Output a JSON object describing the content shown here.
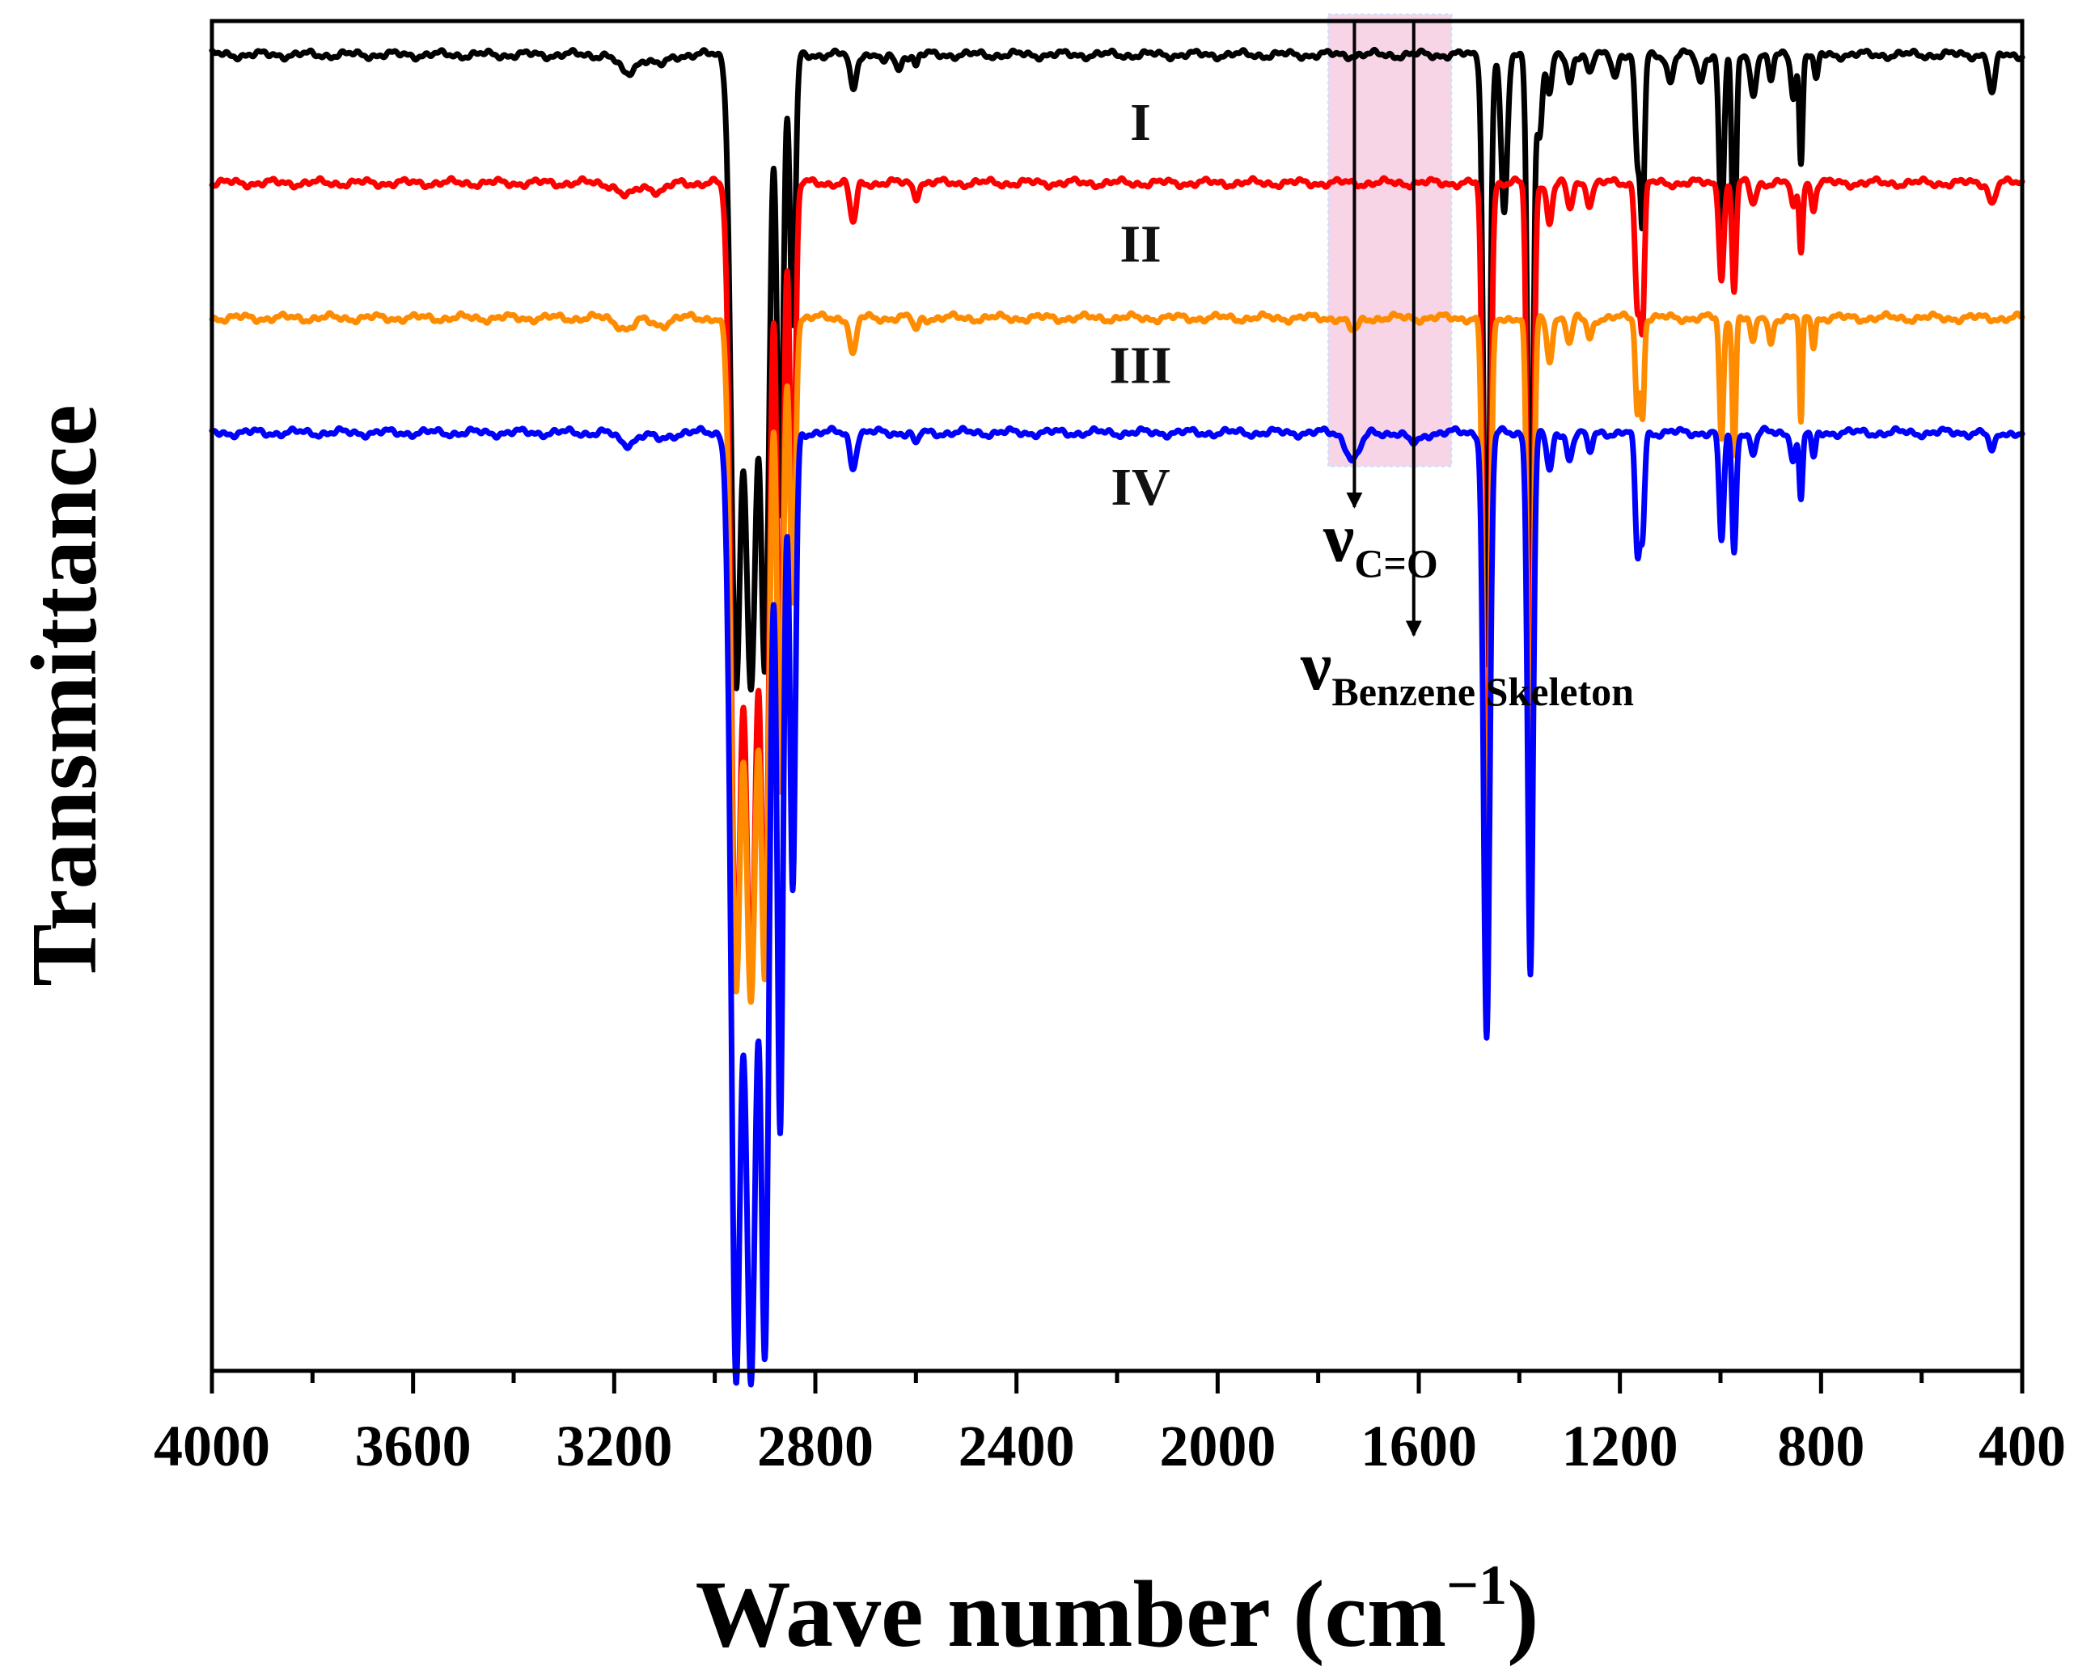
{
  "chart_data": {
    "type": "line",
    "title": "",
    "xlabel": "Wave number (cm",
    "xlabel_sup": "−1",
    "xlabel_close": ")",
    "ylabel": "Transmittance",
    "xlim": [
      4000,
      400
    ],
    "x_reversed": true,
    "xticks": [
      4000,
      3600,
      3200,
      2800,
      2400,
      2000,
      1600,
      1200,
      800,
      400
    ],
    "xtick_labels": [
      "4000",
      "3600",
      "3200",
      "2800",
      "2400",
      "2000",
      "1600",
      "1200",
      "800",
      "400"
    ],
    "x_minor_step": 200,
    "ylim": [
      0,
      100
    ],
    "y_ticks_shown": false,
    "grid": false,
    "series": [
      {
        "name": "I",
        "label": "I",
        "color": "#000000",
        "baseline": 97.5,
        "label_at": 92.5,
        "peaks": [
          [
            3175,
            1.4,
            25
          ],
          [
            3110,
            0.8,
            25
          ],
          [
            2958,
            46,
            14
          ],
          [
            2928,
            47,
            16
          ],
          [
            2900,
            44,
            12
          ],
          [
            2870,
            34,
            9
          ],
          [
            2845,
            20,
            8
          ],
          [
            2725,
            2.5,
            9
          ],
          [
            2665,
            0.8,
            8
          ],
          [
            2635,
            1.2,
            8
          ],
          [
            2600,
            0.8,
            6
          ],
          [
            1465,
            45,
            9
          ],
          [
            1430,
            12,
            9
          ],
          [
            1378,
            42,
            8
          ],
          [
            1360,
            6,
            8
          ],
          [
            1340,
            3,
            8
          ],
          [
            1300,
            2,
            8
          ],
          [
            1260,
            1.5,
            8
          ],
          [
            1210,
            1.5,
            8
          ],
          [
            1165,
            8,
            7
          ],
          [
            1155,
            12,
            6
          ],
          [
            1100,
            2,
            9
          ],
          [
            1040,
            2,
            9
          ],
          [
            998,
            13,
            7
          ],
          [
            973,
            17,
            6
          ],
          [
            935,
            3,
            8
          ],
          [
            900,
            2,
            7
          ],
          [
            855,
            3,
            7
          ],
          [
            840,
            8,
            5
          ],
          [
            810,
            2,
            6
          ],
          [
            460,
            3,
            9
          ]
        ]
      },
      {
        "name": "II",
        "label": "II",
        "color": "#ff0000",
        "baseline": 88.0,
        "label_at": 83.5,
        "peaks": [
          [
            3175,
            1.0,
            25
          ],
          [
            3110,
            0.6,
            25
          ],
          [
            2958,
            58,
            14
          ],
          [
            2928,
            59,
            16
          ],
          [
            2900,
            56,
            12
          ],
          [
            2870,
            42,
            9
          ],
          [
            2845,
            26,
            8
          ],
          [
            2725,
            3.0,
            9
          ],
          [
            2600,
            1.0,
            7
          ],
          [
            1465,
            58,
            9
          ],
          [
            1378,
            52,
            8
          ],
          [
            1340,
            3,
            8
          ],
          [
            1300,
            2,
            8
          ],
          [
            1260,
            1.5,
            8
          ],
          [
            1165,
            9,
            7
          ],
          [
            1155,
            10,
            6
          ],
          [
            998,
            7,
            7
          ],
          [
            973,
            8,
            6
          ],
          [
            935,
            1.5,
            8
          ],
          [
            855,
            2,
            7
          ],
          [
            840,
            5,
            5
          ],
          [
            815,
            2,
            6
          ],
          [
            460,
            1.5,
            9
          ]
        ]
      },
      {
        "name": "III",
        "label": "III",
        "color": "#ff8c00",
        "baseline": 78.0,
        "label_at": 74.5,
        "peaks": [
          [
            3175,
            0.8,
            25
          ],
          [
            3110,
            0.5,
            25
          ],
          [
            2958,
            49,
            14
          ],
          [
            2928,
            50,
            16
          ],
          [
            2900,
            47,
            12
          ],
          [
            2870,
            35,
            9
          ],
          [
            2845,
            21,
            8
          ],
          [
            2725,
            2.8,
            9
          ],
          [
            2600,
            1.0,
            7
          ],
          [
            1730,
            1.0,
            15
          ],
          [
            1465,
            50,
            9
          ],
          [
            1378,
            46,
            8
          ],
          [
            1340,
            3,
            8
          ],
          [
            1300,
            2,
            8
          ],
          [
            1260,
            1.5,
            8
          ],
          [
            1165,
            7,
            6
          ],
          [
            1155,
            7,
            5
          ],
          [
            998,
            9,
            6
          ],
          [
            973,
            10,
            5
          ],
          [
            935,
            2,
            7
          ],
          [
            900,
            2,
            6
          ],
          [
            840,
            8,
            4
          ],
          [
            815,
            2,
            5
          ]
        ]
      },
      {
        "name": "IV",
        "label": "IV",
        "color": "#0000ff",
        "baseline": 69.5,
        "label_at": 65.5,
        "peaks": [
          [
            3175,
            0.8,
            25
          ],
          [
            3110,
            0.5,
            25
          ],
          [
            2958,
            69,
            14
          ],
          [
            2928,
            70,
            16
          ],
          [
            2900,
            66,
            12
          ],
          [
            2870,
            52,
            9
          ],
          [
            2845,
            34,
            8
          ],
          [
            2725,
            2.5,
            9
          ],
          [
            2600,
            1.0,
            7
          ],
          [
            1730,
            2.0,
            20
          ],
          [
            1610,
            0.8,
            20
          ],
          [
            1465,
            45,
            9
          ],
          [
            1378,
            40,
            8
          ],
          [
            1340,
            3,
            8
          ],
          [
            1300,
            2,
            8
          ],
          [
            1260,
            1.5,
            8
          ],
          [
            1165,
            9,
            7
          ],
          [
            1155,
            7,
            6
          ],
          [
            998,
            8,
            7
          ],
          [
            973,
            9,
            6
          ],
          [
            935,
            1.5,
            8
          ],
          [
            855,
            2,
            7
          ],
          [
            840,
            5,
            5
          ],
          [
            815,
            2,
            6
          ],
          [
            460,
            1.5,
            9
          ]
        ]
      }
    ],
    "highlight": {
      "x_from": 1780,
      "x_to": 1535,
      "y_from": 67,
      "y_to": 100.5,
      "color": "#f7d5e7"
    },
    "annotations": [
      {
        "id": "c-o",
        "symbol": "ν",
        "sub": "C=O",
        "arrow_x": 1728,
        "arrow_y_from": 100,
        "arrow_y_to": 64,
        "text_x": 1790,
        "text_y": 60
      },
      {
        "id": "benzene",
        "symbol": "ν",
        "sub": "Benzene Skeleton",
        "arrow_x": 1610,
        "arrow_y_from": 100,
        "arrow_y_to": 54.5,
        "text_x": 1835,
        "text_y": 50.5
      }
    ]
  }
}
